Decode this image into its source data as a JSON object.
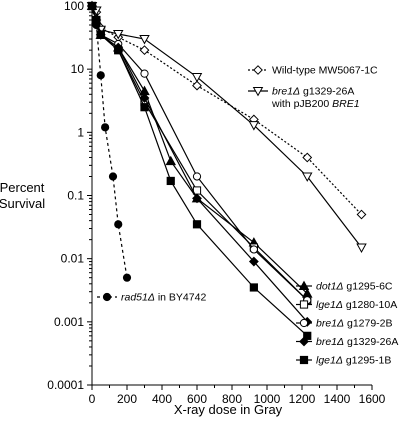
{
  "chart_data": {
    "type": "line",
    "xlabel": "X-ray dose in Gray",
    "ylabel_lines": [
      "Percent",
      "Survival"
    ],
    "xlim": [
      0,
      1600
    ],
    "ylim": [
      0.0001,
      100
    ],
    "yscale": "log",
    "grid": false,
    "x_ticks": [
      0,
      200,
      400,
      600,
      800,
      1000,
      1200,
      1400,
      1600
    ],
    "x_tick_labels": [
      "0",
      "200",
      "400",
      "600",
      "800",
      "1000",
      "1200",
      "1400",
      "1600"
    ],
    "y_ticks": [
      100,
      10,
      1,
      0.1,
      0.01,
      0.001,
      0.0001
    ],
    "y_tick_labels": [
      "100",
      "10",
      "1",
      "0.1",
      "0.01",
      "0.001",
      "0.0001"
    ],
    "series": [
      {
        "name": "Wild-type MW5067-1C",
        "legend_parts": [
          {
            "text": "Wild-type MW5067-1C",
            "italic": false
          }
        ],
        "legend_position": "top-right",
        "marker": "diamond-open",
        "dash": "dotted",
        "points": [
          [
            0,
            100
          ],
          [
            25,
            80
          ],
          [
            50,
            45
          ],
          [
            150,
            32
          ],
          [
            300,
            20
          ],
          [
            600,
            5.5
          ],
          [
            925,
            1.6
          ],
          [
            1230,
            0.4
          ],
          [
            1540,
            0.05
          ]
        ]
      },
      {
        "name": "bre1Δ g1329-26A with pJB200 BRE1",
        "legend_parts": [
          {
            "text": "bre1Δ",
            "italic": true
          },
          {
            "text": " g1329-26A",
            "italic": false
          }
        ],
        "legend_line2_parts": [
          {
            "text": "with pJB200 ",
            "italic": false
          },
          {
            "text": "BRE1",
            "italic": true
          }
        ],
        "legend_position": "top-right",
        "marker": "triangle-down-open",
        "dash": "solid",
        "points": [
          [
            0,
            100
          ],
          [
            25,
            85
          ],
          [
            50,
            42
          ],
          [
            150,
            36
          ],
          [
            300,
            30
          ],
          [
            600,
            7.5
          ],
          [
            925,
            1.3
          ],
          [
            1230,
            0.2
          ],
          [
            1540,
            0.015
          ]
        ]
      },
      {
        "name": "rad51Δ in BY4742",
        "legend_parts": [
          {
            "text": "rad51Δ",
            "italic": true
          },
          {
            "text": " in BY4742",
            "italic": false
          }
        ],
        "legend_position": "lower-left",
        "marker": "circle-filled",
        "dash": "dashed",
        "points": [
          [
            0,
            100
          ],
          [
            25,
            50
          ],
          [
            50,
            8
          ],
          [
            75,
            1.2
          ],
          [
            120,
            0.2
          ],
          [
            150,
            0.035
          ],
          [
            200,
            0.005
          ]
        ]
      },
      {
        "name": "dot1Δ g1295-6C",
        "legend_parts": [
          {
            "text": "dot1Δ",
            "italic": true
          },
          {
            "text": " g1295-6C",
            "italic": false
          }
        ],
        "legend_position": "bottom-right",
        "marker": "triangle-up-filled",
        "dash": "solid",
        "points": [
          [
            0,
            100
          ],
          [
            25,
            60
          ],
          [
            50,
            35
          ],
          [
            150,
            22
          ],
          [
            300,
            4.5
          ],
          [
            450,
            0.35
          ],
          [
            600,
            0.09
          ],
          [
            925,
            0.018
          ],
          [
            1230,
            0.0028
          ]
        ]
      },
      {
        "name": "lge1Δ g1280-10A",
        "legend_parts": [
          {
            "text": "lge1Δ",
            "italic": true
          },
          {
            "text": " g1280-10A",
            "italic": false
          }
        ],
        "legend_position": "bottom-right",
        "marker": "square-open",
        "dash": "solid",
        "points": [
          [
            0,
            100
          ],
          [
            25,
            60
          ],
          [
            50,
            35
          ],
          [
            150,
            20
          ],
          [
            300,
            3
          ],
          [
            600,
            0.12
          ],
          [
            925,
            0.015
          ],
          [
            1230,
            0.0022
          ]
        ]
      },
      {
        "name": "bre1Δ g1279-2B",
        "legend_parts": [
          {
            "text": "bre1Δ",
            "italic": true
          },
          {
            "text": " g1279-2B",
            "italic": false
          }
        ],
        "legend_position": "bottom-right",
        "marker": "circle-open",
        "dash": "solid",
        "points": [
          [
            0,
            100
          ],
          [
            25,
            60
          ],
          [
            50,
            35
          ],
          [
            150,
            25
          ],
          [
            300,
            8.5
          ],
          [
            600,
            0.2
          ],
          [
            925,
            0.014
          ],
          [
            1230,
            0.0022
          ]
        ]
      },
      {
        "name": "bre1Δ g1329-26A",
        "legend_parts": [
          {
            "text": "bre1Δ",
            "italic": true
          },
          {
            "text": " g1329-26A",
            "italic": false
          }
        ],
        "legend_position": "bottom-right",
        "marker": "diamond-filled",
        "dash": "solid",
        "points": [
          [
            0,
            100
          ],
          [
            25,
            60
          ],
          [
            50,
            35
          ],
          [
            150,
            22
          ],
          [
            300,
            3.5
          ],
          [
            600,
            0.09
          ],
          [
            925,
            0.009
          ],
          [
            1230,
            0.001
          ]
        ]
      },
      {
        "name": "lge1Δ g1295-1B",
        "legend_parts": [
          {
            "text": "lge1Δ",
            "italic": true
          },
          {
            "text": " g1295-1B",
            "italic": false
          }
        ],
        "legend_position": "bottom-right",
        "marker": "square-filled",
        "dash": "solid",
        "points": [
          [
            0,
            100
          ],
          [
            25,
            60
          ],
          [
            50,
            35
          ],
          [
            150,
            20
          ],
          [
            300,
            2.5
          ],
          [
            450,
            0.17
          ],
          [
            600,
            0.035
          ],
          [
            925,
            0.0035
          ],
          [
            1230,
            0.0006
          ]
        ]
      }
    ]
  }
}
